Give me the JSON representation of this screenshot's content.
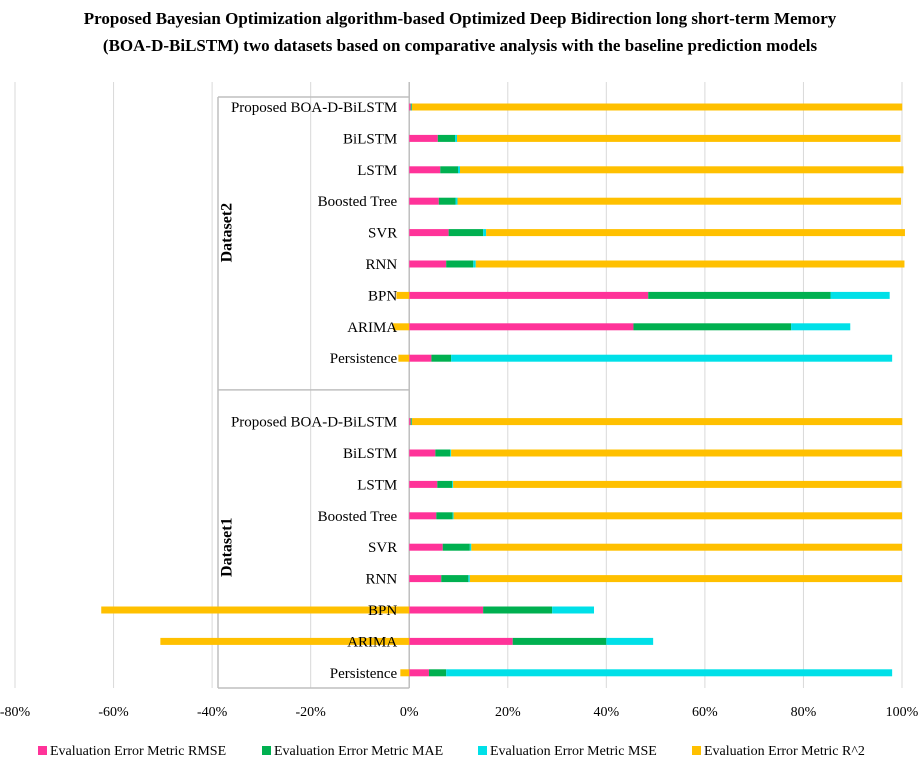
{
  "chart_data": {
    "type": "bar",
    "orientation": "horizontal",
    "stacked": true,
    "title_lines": [
      "Proposed Bayesian Optimization algorithm-based Optimized Deep Bidirection long short-term Memory",
      "(BOA-D-BiLSTM) two datasets based on comparative analysis with the baseline prediction models"
    ],
    "xlim": [
      -0.8,
      1.0
    ],
    "xticks": [
      -0.8,
      -0.6,
      -0.4,
      -0.2,
      0,
      0.2,
      0.4,
      0.6,
      0.8,
      1.0
    ],
    "xtick_labels": [
      "-80%",
      "-60%",
      "-40%",
      "-20%",
      "0%",
      "20%",
      "40%",
      "60%",
      "80%",
      "100%"
    ],
    "grid": "vertical",
    "legend_position": "bottom",
    "series": [
      {
        "name": "Evaluation  Error Metric  RMSE",
        "color": "#ff3399"
      },
      {
        "name": "Evaluation  Error Metric  MAE",
        "color": "#00b050"
      },
      {
        "name": "Evaluation  Error Metric  MSE",
        "color": "#00e0e8"
      },
      {
        "name": "Evaluation  Error Metric  R^2",
        "color": "#ffc000"
      }
    ],
    "groups": [
      {
        "name": "Dataset2",
        "categories": [
          {
            "label": "Proposed BOA-D-BiLSTM",
            "rmse": 0.003,
            "mae": 0.002,
            "mse": 0.0005,
            "r2": 0.995
          },
          {
            "label": "BiLSTM",
            "rmse": 0.058,
            "mae": 0.035,
            "mse": 0.004,
            "r2": 0.9
          },
          {
            "label": "LSTM",
            "rmse": 0.063,
            "mae": 0.036,
            "mse": 0.004,
            "r2": 0.9
          },
          {
            "label": "Boosted Tree",
            "rmse": 0.06,
            "mae": 0.034,
            "mse": 0.004,
            "r2": 0.9
          },
          {
            "label": "SVR",
            "rmse": 0.08,
            "mae": 0.07,
            "mse": 0.006,
            "r2": 0.85
          },
          {
            "label": "RNN",
            "rmse": 0.075,
            "mae": 0.055,
            "mse": 0.005,
            "r2": 0.87
          },
          {
            "label": "BPN",
            "rmse": 0.485,
            "mae": 0.37,
            "mse": 0.12,
            "r2": -0.026
          },
          {
            "label": "ARIMA",
            "rmse": 0.455,
            "mae": 0.32,
            "mse": 0.12,
            "r2": -0.033
          },
          {
            "label": "Persistence",
            "rmse": 0.045,
            "mae": 0.04,
            "mse": 0.895,
            "r2": -0.022
          }
        ]
      },
      {
        "name": "Dataset1",
        "categories": [
          {
            "label": "Proposed BOA-D-BiLSTM",
            "rmse": 0.003,
            "mae": 0.002,
            "mse": 0.0005,
            "r2": 0.995
          },
          {
            "label": "BiLSTM",
            "rmse": 0.053,
            "mae": 0.03,
            "mse": 0.002,
            "r2": 0.915
          },
          {
            "label": "LSTM",
            "rmse": 0.057,
            "mae": 0.03,
            "mse": 0.002,
            "r2": 0.91
          },
          {
            "label": "Boosted Tree",
            "rmse": 0.055,
            "mae": 0.033,
            "mse": 0.002,
            "r2": 0.91
          },
          {
            "label": "SVR",
            "rmse": 0.068,
            "mae": 0.055,
            "mse": 0.003,
            "r2": 0.874
          },
          {
            "label": "RNN",
            "rmse": 0.065,
            "mae": 0.055,
            "mse": 0.003,
            "r2": 0.877
          },
          {
            "label": "BPN",
            "rmse": 0.15,
            "mae": 0.14,
            "mse": 0.085,
            "r2": -0.625
          },
          {
            "label": "ARIMA",
            "rmse": 0.21,
            "mae": 0.19,
            "mse": 0.095,
            "r2": -0.505
          },
          {
            "label": "Persistence",
            "rmse": 0.04,
            "mae": 0.035,
            "mse": 0.905,
            "r2": -0.018
          }
        ]
      }
    ]
  }
}
